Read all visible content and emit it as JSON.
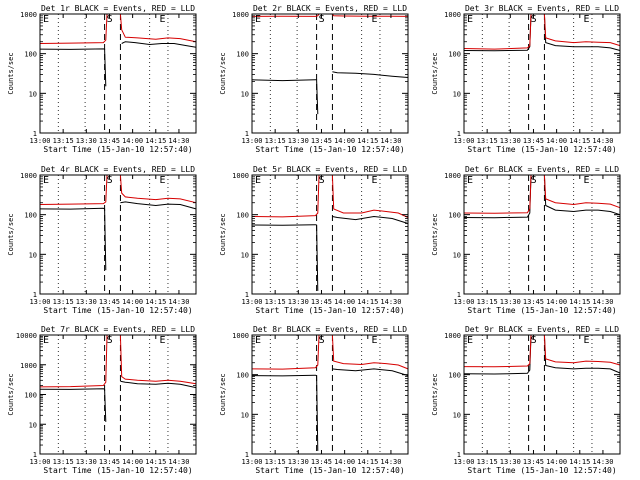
{
  "colors": {
    "events": "#000000",
    "lld": "#d60000",
    "background": "#ffffff",
    "axes": "#000000"
  },
  "chart_common": {
    "type": "line",
    "xlabel": "Start Time (15-Jan-10 12:57:40)",
    "ylabel": "Counts/sec",
    "y_scale": "log",
    "x_tick_labels": [
      "13:00",
      "13:15",
      "13:30",
      "13:45",
      "14:00",
      "14:15",
      "14:30"
    ],
    "markers": {
      "start": "E",
      "mid": "S",
      "end": "E"
    },
    "legend_in_title": "BLACK = Events, RED = LLD"
  },
  "chart_data": [
    {
      "title": "Det 1r BLACK = Events, RED = LLD",
      "ylim": [
        1,
        1000
      ],
      "y_tick_labels": [
        "1",
        "10",
        "100",
        "1000"
      ],
      "series": [
        {
          "name": "Events",
          "color": "#000000",
          "segments": [
            {
              "x": [
                0,
                25,
                52,
                53,
                54
              ],
              "y": [
                130,
                128,
                132,
                130,
                15
              ]
            },
            {
              "x": [
                67,
                70,
                78,
                90,
                100,
                110,
                120,
                128
              ],
              "y": [
                180,
                200,
                190,
                170,
                180,
                180,
                160,
                145
              ]
            }
          ]
        },
        {
          "name": "LLD",
          "color": "#d60000",
          "segments": [
            {
              "x": [
                0,
                25,
                52,
                54,
                55
              ],
              "y": [
                180,
                185,
                190,
                220,
                1000
              ]
            },
            {
              "x": [
                66,
                67,
                70,
                80,
                95,
                105,
                115,
                128
              ],
              "y": [
                1000,
                400,
                260,
                250,
                230,
                250,
                240,
                200
              ]
            }
          ]
        }
      ]
    },
    {
      "title": "Det 2r BLACK = Events, RED = LLD",
      "ylim": [
        1,
        1000
      ],
      "y_tick_labels": [
        "1",
        "10",
        "100",
        "1000"
      ],
      "series": [
        {
          "name": "Events",
          "color": "#000000",
          "segments": [
            {
              "x": [
                0,
                25,
                52,
                53,
                54
              ],
              "y": [
                22,
                21,
                22,
                22,
                3
              ]
            },
            {
              "x": [
                66,
                70,
                85,
                100,
                115,
                128
              ],
              "y": [
                35,
                33,
                32,
                30,
                27,
                25
              ]
            }
          ]
        },
        {
          "name": "LLD",
          "color": "#d60000",
          "segments": [
            {
              "x": [
                0,
                25,
                52,
                54,
                55
              ],
              "y": [
                870,
                880,
                870,
                900,
                1000
              ]
            },
            {
              "x": [
                66,
                67,
                75,
                95,
                115,
                128
              ],
              "y": [
                1000,
                900,
                890,
                880,
                880,
                870
              ]
            }
          ]
        }
      ]
    },
    {
      "title": "Det 3r BLACK = Events, RED = LLD",
      "ylim": [
        1,
        1000
      ],
      "y_tick_labels": [
        "1",
        "10",
        "100",
        "1000"
      ],
      "series": [
        {
          "name": "Events",
          "color": "#000000",
          "segments": [
            {
              "x": [
                0,
                25,
                52,
                54,
                55
              ],
              "y": [
                120,
                118,
                122,
                150,
                1000
              ]
            },
            {
              "x": [
                66,
                67,
                75,
                90,
                100,
                110,
                120,
                128
              ],
              "y": [
                1000,
                190,
                160,
                150,
                150,
                150,
                140,
                120
              ]
            }
          ]
        },
        {
          "name": "LLD",
          "color": "#d60000",
          "segments": [
            {
              "x": [
                0,
                25,
                52,
                54,
                55
              ],
              "y": [
                135,
                130,
                140,
                160,
                1000
              ]
            },
            {
              "x": [
                66,
                67,
                75,
                90,
                100,
                110,
                120,
                128
              ],
              "y": [
                1000,
                250,
                210,
                190,
                200,
                195,
                190,
                160
              ]
            }
          ]
        }
      ]
    },
    {
      "title": "Det 4r BLACK = Events, RED = LLD",
      "ylim": [
        1,
        1000
      ],
      "y_tick_labels": [
        "1",
        "10",
        "100",
        "1000"
      ],
      "series": [
        {
          "name": "Events",
          "color": "#000000",
          "segments": [
            {
              "x": [
                0,
                25,
                52,
                53,
                54
              ],
              "y": [
                140,
                138,
                145,
                140,
                4
              ]
            },
            {
              "x": [
                66,
                70,
                80,
                95,
                105,
                115,
                128
              ],
              "y": [
                200,
                210,
                190,
                170,
                185,
                180,
                140
              ]
            }
          ]
        },
        {
          "name": "LLD",
          "color": "#d60000",
          "segments": [
            {
              "x": [
                0,
                25,
                52,
                54,
                55
              ],
              "y": [
                180,
                185,
                190,
                210,
                1000
              ]
            },
            {
              "x": [
                66,
                67,
                70,
                80,
                95,
                105,
                115,
                128
              ],
              "y": [
                1000,
                350,
                280,
                260,
                240,
                260,
                250,
                200
              ]
            }
          ]
        }
      ]
    },
    {
      "title": "Det 5r BLACK = Events, RED = LLD",
      "ylim": [
        1,
        1000
      ],
      "y_tick_labels": [
        "1",
        "10",
        "100",
        "1000"
      ],
      "series": [
        {
          "name": "Events",
          "color": "#000000",
          "segments": [
            {
              "x": [
                0,
                25,
                52,
                53,
                54
              ],
              "y": [
                55,
                54,
                56,
                55,
                1.2
              ]
            },
            {
              "x": [
                66,
                70,
                85,
                100,
                115,
                128
              ],
              "y": [
                90,
                85,
                75,
                90,
                80,
                60
              ]
            }
          ]
        },
        {
          "name": "LLD",
          "color": "#d60000",
          "segments": [
            {
              "x": [
                0,
                25,
                52,
                54,
                55
              ],
              "y": [
                90,
                88,
                95,
                110,
                1000
              ]
            },
            {
              "x": [
                66,
                67,
                75,
                90,
                100,
                110,
                120,
                128
              ],
              "y": [
                1000,
                140,
                110,
                110,
                130,
                120,
                110,
                85
              ]
            }
          ]
        }
      ]
    },
    {
      "title": "Det 6r BLACK = Events, RED = LLD",
      "ylim": [
        1,
        1000
      ],
      "y_tick_labels": [
        "1",
        "10",
        "100",
        "1000"
      ],
      "series": [
        {
          "name": "Events",
          "color": "#000000",
          "segments": [
            {
              "x": [
                0,
                25,
                52,
                54,
                55
              ],
              "y": [
                85,
                84,
                87,
                110,
                1000
              ]
            },
            {
              "x": [
                66,
                67,
                75,
                90,
                100,
                110,
                120,
                128
              ],
              "y": [
                1000,
                170,
                130,
                120,
                130,
                130,
                120,
                100
              ]
            }
          ]
        },
        {
          "name": "LLD",
          "color": "#d60000",
          "segments": [
            {
              "x": [
                0,
                25,
                52,
                54,
                55
              ],
              "y": [
                110,
                108,
                112,
                140,
                1000
              ]
            },
            {
              "x": [
                66,
                67,
                75,
                90,
                100,
                110,
                120,
                128
              ],
              "y": [
                1000,
                250,
                200,
                180,
                200,
                195,
                185,
                150
              ]
            }
          ]
        }
      ]
    },
    {
      "title": "Det 7r BLACK = Events, RED = LLD",
      "ylim": [
        1,
        10000
      ],
      "y_tick_labels": [
        "1",
        "10",
        "100",
        "1000",
        "10000"
      ],
      "series": [
        {
          "name": "Events",
          "color": "#000000",
          "segments": [
            {
              "x": [
                0,
                25,
                52,
                53,
                54
              ],
              "y": [
                150,
                148,
                155,
                150,
                12
              ]
            },
            {
              "x": [
                66,
                70,
                80,
                95,
                105,
                115,
                128
              ],
              "y": [
                280,
                260,
                230,
                220,
                240,
                220,
                170
              ]
            }
          ]
        },
        {
          "name": "LLD",
          "color": "#d60000",
          "segments": [
            {
              "x": [
                0,
                25,
                52,
                54,
                55
              ],
              "y": [
                180,
                185,
                200,
                260,
                10000
              ]
            },
            {
              "x": [
                66,
                67,
                70,
                80,
                95,
                105,
                115,
                128
              ],
              "y": [
                10000,
                400,
                330,
                300,
                280,
                300,
                280,
                230
              ]
            }
          ]
        }
      ]
    },
    {
      "title": "Det 8r BLACK = Events, RED = LLD",
      "ylim": [
        1,
        1000
      ],
      "y_tick_labels": [
        "1",
        "10",
        "100",
        "1000"
      ],
      "series": [
        {
          "name": "Events",
          "color": "#000000",
          "segments": [
            {
              "x": [
                0,
                25,
                52,
                53,
                54
              ],
              "y": [
                95,
                93,
                97,
                95,
                1.2
              ]
            },
            {
              "x": [
                66,
                70,
                85,
                100,
                115,
                128
              ],
              "y": [
                140,
                135,
                125,
                140,
                125,
                95
              ]
            }
          ]
        },
        {
          "name": "LLD",
          "color": "#d60000",
          "segments": [
            {
              "x": [
                0,
                25,
                52,
                54,
                55
              ],
              "y": [
                140,
                138,
                150,
                175,
                1000
              ]
            },
            {
              "x": [
                66,
                67,
                75,
                90,
                100,
                110,
                120,
                128
              ],
              "y": [
                1000,
                220,
                190,
                180,
                200,
                190,
                175,
                140
              ]
            }
          ]
        }
      ]
    },
    {
      "title": "Det 9r BLACK = Events, RED = LLD",
      "ylim": [
        1,
        1000
      ],
      "y_tick_labels": [
        "1",
        "10",
        "100",
        "1000"
      ],
      "series": [
        {
          "name": "Events",
          "color": "#000000",
          "segments": [
            {
              "x": [
                0,
                25,
                52,
                54,
                55
              ],
              "y": [
                105,
                104,
                108,
                130,
                1000
              ]
            },
            {
              "x": [
                66,
                67,
                75,
                90,
                100,
                110,
                120,
                128
              ],
              "y": [
                1000,
                170,
                150,
                140,
                145,
                145,
                140,
                110
              ]
            }
          ]
        },
        {
          "name": "LLD",
          "color": "#d60000",
          "segments": [
            {
              "x": [
                0,
                25,
                52,
                54,
                55
              ],
              "y": [
                160,
                158,
                165,
                190,
                1000
              ]
            },
            {
              "x": [
                66,
                67,
                75,
                90,
                100,
                110,
                120,
                128
              ],
              "y": [
                1000,
                250,
                210,
                200,
                220,
                215,
                205,
                175
              ]
            }
          ]
        }
      ]
    }
  ]
}
